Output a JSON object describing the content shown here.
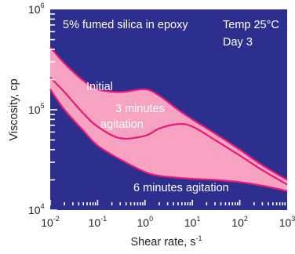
{
  "chart_data": {
    "type": "area",
    "title": "",
    "xlabel": "Shear rate, s",
    "xlabel_superscript": "-1",
    "ylabel": "Viscosity, cp",
    "x_scale": "log",
    "y_scale": "log",
    "xlim": [
      0.01,
      1000
    ],
    "ylim": [
      10000,
      1000000
    ],
    "grid": false,
    "x_tick_labels": [
      {
        "value": 0.01,
        "base": "10",
        "exp": "-2"
      },
      {
        "value": 0.1,
        "base": "10",
        "exp": "-1"
      },
      {
        "value": 1,
        "base": "10",
        "exp": "0"
      },
      {
        "value": 10,
        "base": "10",
        "exp": "1"
      },
      {
        "value": 100,
        "base": "10",
        "exp": "2"
      },
      {
        "value": 1000,
        "base": "10",
        "exp": "3"
      }
    ],
    "y_tick_labels": [
      {
        "value": 10000,
        "base": "10",
        "exp": "4"
      },
      {
        "value": 100000,
        "base": "10",
        "exp": "5"
      },
      {
        "value": 1000000,
        "base": "10",
        "exp": "6"
      }
    ],
    "annotations": {
      "material": "5% fumed silica in epoxy",
      "temp": "Temp 25°C",
      "day": "Day 3"
    },
    "colors": {
      "plot_background": "#2d2f8f",
      "band_fill": "#f5a3c0",
      "curve": "#e8197a",
      "text": "#ffffff",
      "ticks": "#ffffff"
    },
    "series": [
      {
        "name": "Initial",
        "x": [
          0.01,
          0.02,
          0.05,
          0.1,
          0.3,
          1,
          2,
          5,
          10,
          30,
          100,
          300,
          1000
        ],
        "y": [
          420000,
          290000,
          195000,
          160000,
          150000,
          160000,
          138000,
          100000,
          80000,
          58000,
          40000,
          28000,
          20000
        ]
      },
      {
        "name": "3 minutes agitation",
        "x": [
          0.01,
          0.02,
          0.05,
          0.1,
          0.3,
          1,
          2,
          5,
          10,
          30,
          100,
          300,
          1000
        ],
        "y": [
          210000,
          150000,
          92000,
          68000,
          52000,
          55000,
          65000,
          72000,
          68000,
          50000,
          35000,
          25000,
          18000
        ]
      },
      {
        "name": "6 minutes agitation",
        "x": [
          0.01,
          0.02,
          0.05,
          0.1,
          0.3,
          1,
          2,
          5,
          10,
          30,
          100,
          300,
          1000
        ],
        "y": [
          160000,
          100000,
          62000,
          44000,
          32000,
          24000,
          22000,
          21000,
          20500,
          20000,
          19000,
          17500,
          15500
        ]
      }
    ],
    "band": {
      "upper_series": "Initial",
      "lower_series": "6 minutes agitation"
    }
  }
}
